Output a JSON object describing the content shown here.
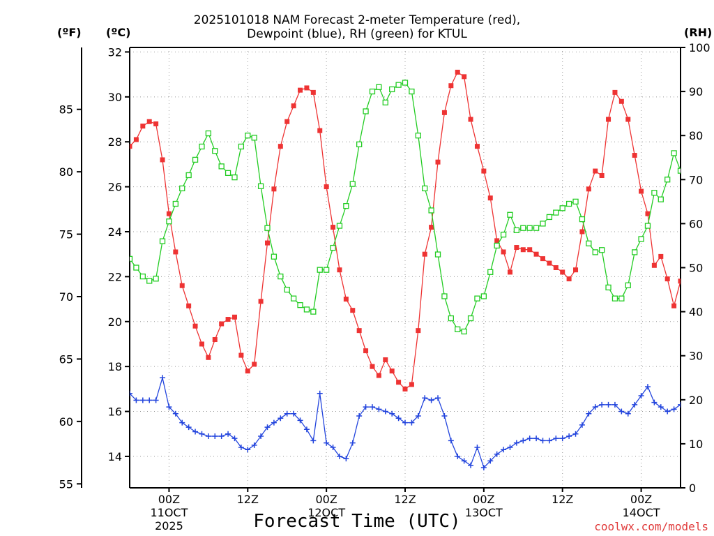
{
  "title": {
    "line1": "2025101018 NAM Forecast 2-meter Temperature (red),",
    "line2": "Dewpoint (blue), RH (green) for KTUL"
  },
  "units": {
    "fahrenheit": "(ºF)",
    "celsius": "(ºC)",
    "rh": "(RH)"
  },
  "xlabel": "Forecast Time (UTC)",
  "credit": "coolwx.com/models",
  "colors": {
    "temperature": "#ee3333",
    "dewpoint": "#2244dd",
    "rh": "#22cc22",
    "grid": "#999999"
  },
  "chart_data": {
    "type": "line",
    "x_axis": {
      "unit": "forecast hour",
      "range": [
        0,
        84
      ],
      "ticks": [
        {
          "hour": 6,
          "label": "00Z",
          "sub": "11OCT",
          "sub2": "2025"
        },
        {
          "hour": 18,
          "label": "12Z",
          "sub": "",
          "sub2": ""
        },
        {
          "hour": 30,
          "label": "00Z",
          "sub": "12OCT",
          "sub2": ""
        },
        {
          "hour": 42,
          "label": "12Z",
          "sub": "",
          "sub2": ""
        },
        {
          "hour": 54,
          "label": "00Z",
          "sub": "13OCT",
          "sub2": ""
        },
        {
          "hour": 66,
          "label": "12Z",
          "sub": "",
          "sub2": ""
        },
        {
          "hour": 78,
          "label": "00Z",
          "sub": "14OCT",
          "sub2": ""
        }
      ]
    },
    "y_axis_celsius": {
      "range": [
        12.6,
        32.2
      ],
      "ticks": [
        "14",
        "16",
        "18",
        "20",
        "22",
        "24",
        "26",
        "28",
        "30",
        "32"
      ]
    },
    "y_axis_fahrenheit": {
      "ticks": [
        "55",
        "60",
        "65",
        "70",
        "75",
        "80",
        "85"
      ]
    },
    "y_axis_rh": {
      "range": [
        0,
        100
      ],
      "ticks": [
        "0",
        "10",
        "20",
        "30",
        "40",
        "50",
        "60",
        "70",
        "80",
        "90",
        "100"
      ]
    },
    "series": [
      {
        "name": "2-meter Temperature",
        "units": "°C",
        "marker": "filled-square",
        "values": [
          27.8,
          28.1,
          28.7,
          28.9,
          28.8,
          27.2,
          24.8,
          23.1,
          21.6,
          20.7,
          19.8,
          19.0,
          18.4,
          19.2,
          19.9,
          20.1,
          20.2,
          18.5,
          17.8,
          18.1,
          20.9,
          23.5,
          25.9,
          27.8,
          28.9,
          29.6,
          30.3,
          30.4,
          30.2,
          28.5,
          26.0,
          24.2,
          22.3,
          21.0,
          20.5,
          19.6,
          18.7,
          18.0,
          17.6,
          18.3,
          17.8,
          17.3,
          17.0,
          17.2,
          19.6,
          23.0,
          24.2,
          27.1,
          29.3,
          30.5,
          31.1,
          30.9,
          29.0,
          27.8,
          26.7,
          25.5,
          23.6,
          23.1,
          22.2,
          23.3,
          23.2,
          23.2,
          23.0,
          22.8,
          22.6,
          22.4,
          22.2,
          21.9,
          22.3,
          24.0,
          25.9,
          26.7,
          26.5,
          29.0,
          30.2,
          29.8,
          29.0,
          27.4,
          25.8,
          24.8,
          22.5,
          22.9,
          21.9,
          20.7,
          21.8
        ]
      },
      {
        "name": "Dewpoint",
        "units": "°C",
        "marker": "plus",
        "values": [
          16.8,
          16.5,
          16.5,
          16.5,
          16.5,
          17.5,
          16.2,
          15.9,
          15.5,
          15.3,
          15.1,
          15.0,
          14.9,
          14.9,
          14.9,
          15.0,
          14.8,
          14.4,
          14.3,
          14.5,
          14.9,
          15.3,
          15.5,
          15.7,
          15.9,
          15.9,
          15.6,
          15.2,
          14.7,
          16.8,
          14.6,
          14.4,
          14.0,
          13.9,
          14.6,
          15.8,
          16.2,
          16.2,
          16.1,
          16.0,
          15.9,
          15.7,
          15.5,
          15.5,
          15.8,
          16.6,
          16.5,
          16.6,
          15.8,
          14.7,
          14.0,
          13.8,
          13.6,
          14.4,
          13.5,
          13.8,
          14.1,
          14.3,
          14.4,
          14.6,
          14.7,
          14.8,
          14.8,
          14.7,
          14.7,
          14.8,
          14.8,
          14.9,
          15.0,
          15.4,
          15.9,
          16.2,
          16.3,
          16.3,
          16.3,
          16.0,
          15.9,
          16.3,
          16.7,
          17.1,
          16.4,
          16.2,
          16.0,
          16.1,
          16.3
        ]
      },
      {
        "name": "Relative Humidity",
        "units": "%",
        "marker": "open-square",
        "values": [
          52,
          50,
          48,
          47,
          47.5,
          56,
          60.5,
          64.5,
          68,
          71,
          74.5,
          77.5,
          80.5,
          76.5,
          73,
          71.5,
          70.5,
          77.5,
          80,
          79.5,
          68.5,
          59,
          52.5,
          48,
          45,
          43,
          41.5,
          40.5,
          40,
          49.5,
          49.5,
          54.5,
          59.5,
          64,
          69,
          78,
          85.5,
          90,
          91,
          87.5,
          90.5,
          91.5,
          92,
          90,
          80,
          68,
          63,
          53,
          43.5,
          38.5,
          36,
          35.5,
          38.5,
          43,
          43.5,
          49,
          55,
          57.5,
          62,
          58.5,
          59,
          59,
          59,
          60,
          61.5,
          62.5,
          63.5,
          64.5,
          65,
          61,
          55.5,
          53.5,
          54,
          45.5,
          43,
          43,
          46,
          53.5,
          56.5,
          59.5,
          67,
          65.5,
          70,
          76,
          72
        ]
      }
    ]
  }
}
